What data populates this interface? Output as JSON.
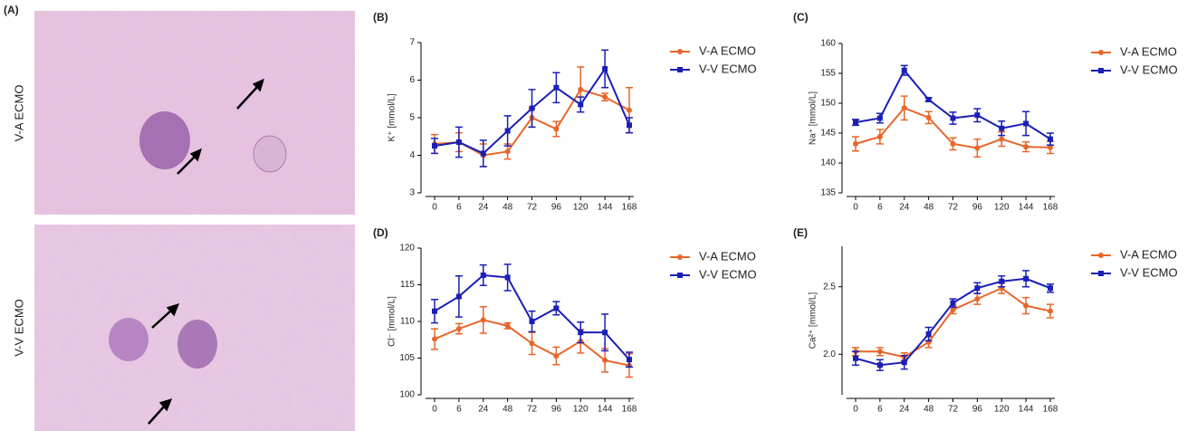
{
  "image_panel": {
    "label": "(A)",
    "rows": [
      "V-A ECMO",
      "V-V ECMO"
    ]
  },
  "chart_data": [
    {
      "type": "line",
      "label": "(B)",
      "y_label": "K⁺ [mmol/L]",
      "categories": [
        "0",
        "6",
        "24",
        "48",
        "72",
        "96",
        "120",
        "144",
        "168"
      ],
      "ylim": [
        3,
        7
      ],
      "yticks": [
        3,
        4,
        5,
        6,
        7
      ],
      "series": [
        {
          "name": "V-A ECMO",
          "color": "#e8662a",
          "marker": "circle",
          "values": [
            4.3,
            4.35,
            4.0,
            4.1,
            5.0,
            4.7,
            5.75,
            5.55,
            5.2
          ],
          "errors": [
            0.25,
            0.25,
            0.3,
            0.2,
            0.25,
            0.2,
            0.6,
            0.1,
            0.6
          ]
        },
        {
          "name": "V-V ECMO",
          "color": "#1a1fb5",
          "marker": "square",
          "values": [
            4.25,
            4.35,
            4.05,
            4.65,
            5.25,
            5.8,
            5.35,
            6.3,
            4.8
          ],
          "errors": [
            0.2,
            0.4,
            0.35,
            0.4,
            0.5,
            0.4,
            0.2,
            0.5,
            0.2
          ]
        }
      ]
    },
    {
      "type": "line",
      "label": "(C)",
      "y_label": "Na⁺ [mmol/L]",
      "categories": [
        "0",
        "6",
        "24",
        "48",
        "72",
        "96",
        "120",
        "144",
        "168"
      ],
      "ylim": [
        135,
        160
      ],
      "yticks": [
        135,
        140,
        145,
        150,
        155,
        160
      ],
      "series": [
        {
          "name": "V-A ECMO",
          "color": "#e8662a",
          "marker": "circle",
          "values": [
            143.2,
            144.4,
            149.2,
            147.6,
            143.2,
            142.5,
            144,
            142.7,
            142.6
          ],
          "errors": [
            1.2,
            1.2,
            2,
            1,
            1,
            1.5,
            1.2,
            0.8,
            1
          ]
        },
        {
          "name": "V-V ECMO",
          "color": "#1a1fb5",
          "marker": "square",
          "values": [
            146.8,
            147.5,
            155.5,
            150.6,
            147.5,
            148,
            145.8,
            146.6,
            144
          ],
          "errors": [
            0.5,
            0.8,
            0.8,
            0.3,
            1,
            1.1,
            1.2,
            2,
            1
          ]
        }
      ]
    },
    {
      "type": "line",
      "label": "(D)",
      "y_label": "Cl⁻ [mmol/L]",
      "categories": [
        "0",
        "6",
        "24",
        "48",
        "72",
        "96",
        "120",
        "144",
        "168"
      ],
      "ylim": [
        100,
        120
      ],
      "yticks": [
        100,
        105,
        110,
        115,
        120
      ],
      "series": [
        {
          "name": "V-A ECMO",
          "color": "#e8662a",
          "marker": "circle",
          "values": [
            107.6,
            109,
            110.2,
            109.4,
            107,
            105.3,
            107.3,
            104.7,
            104
          ],
          "errors": [
            1.4,
            0.7,
            1.8,
            0.4,
            1.5,
            1.2,
            1.6,
            1.6,
            1.6
          ]
        },
        {
          "name": "V-V ECMO",
          "color": "#1a1fb5",
          "marker": "square",
          "values": [
            111.4,
            113.4,
            116.3,
            116,
            110,
            111.8,
            108.5,
            108.5,
            104.8
          ],
          "errors": [
            1.6,
            2.8,
            1.4,
            1.8,
            1.4,
            0.9,
            1.4,
            2.5,
            1
          ]
        }
      ]
    },
    {
      "type": "line",
      "label": "(E)",
      "y_label": "Ca²⁺ [mmol/L]",
      "categories": [
        "0",
        "6",
        "24",
        "48",
        "72",
        "96",
        "120",
        "144",
        "168"
      ],
      "ylim": [
        1.7,
        2.8
      ],
      "yticks": [
        {
          "value": 2,
          "label": "2.0"
        },
        {
          "value": 2.5,
          "label": "2.5"
        }
      ],
      "series": [
        {
          "name": "V-A ECMO",
          "color": "#e8662a",
          "marker": "circle",
          "values": [
            2.02,
            2.02,
            1.98,
            2.09,
            2.33,
            2.41,
            2.49,
            2.36,
            2.32
          ],
          "errors": [
            0.03,
            0.03,
            0.03,
            0.04,
            0.03,
            0.04,
            0.04,
            0.06,
            0.05
          ]
        },
        {
          "name": "V-V ECMO",
          "color": "#1a1fb5",
          "marker": "square",
          "values": [
            1.97,
            1.92,
            1.94,
            2.15,
            2.38,
            2.49,
            2.54,
            2.56,
            2.49
          ],
          "errors": [
            0.05,
            0.04,
            0.05,
            0.05,
            0.03,
            0.04,
            0.04,
            0.06,
            0.03
          ]
        }
      ]
    }
  ]
}
